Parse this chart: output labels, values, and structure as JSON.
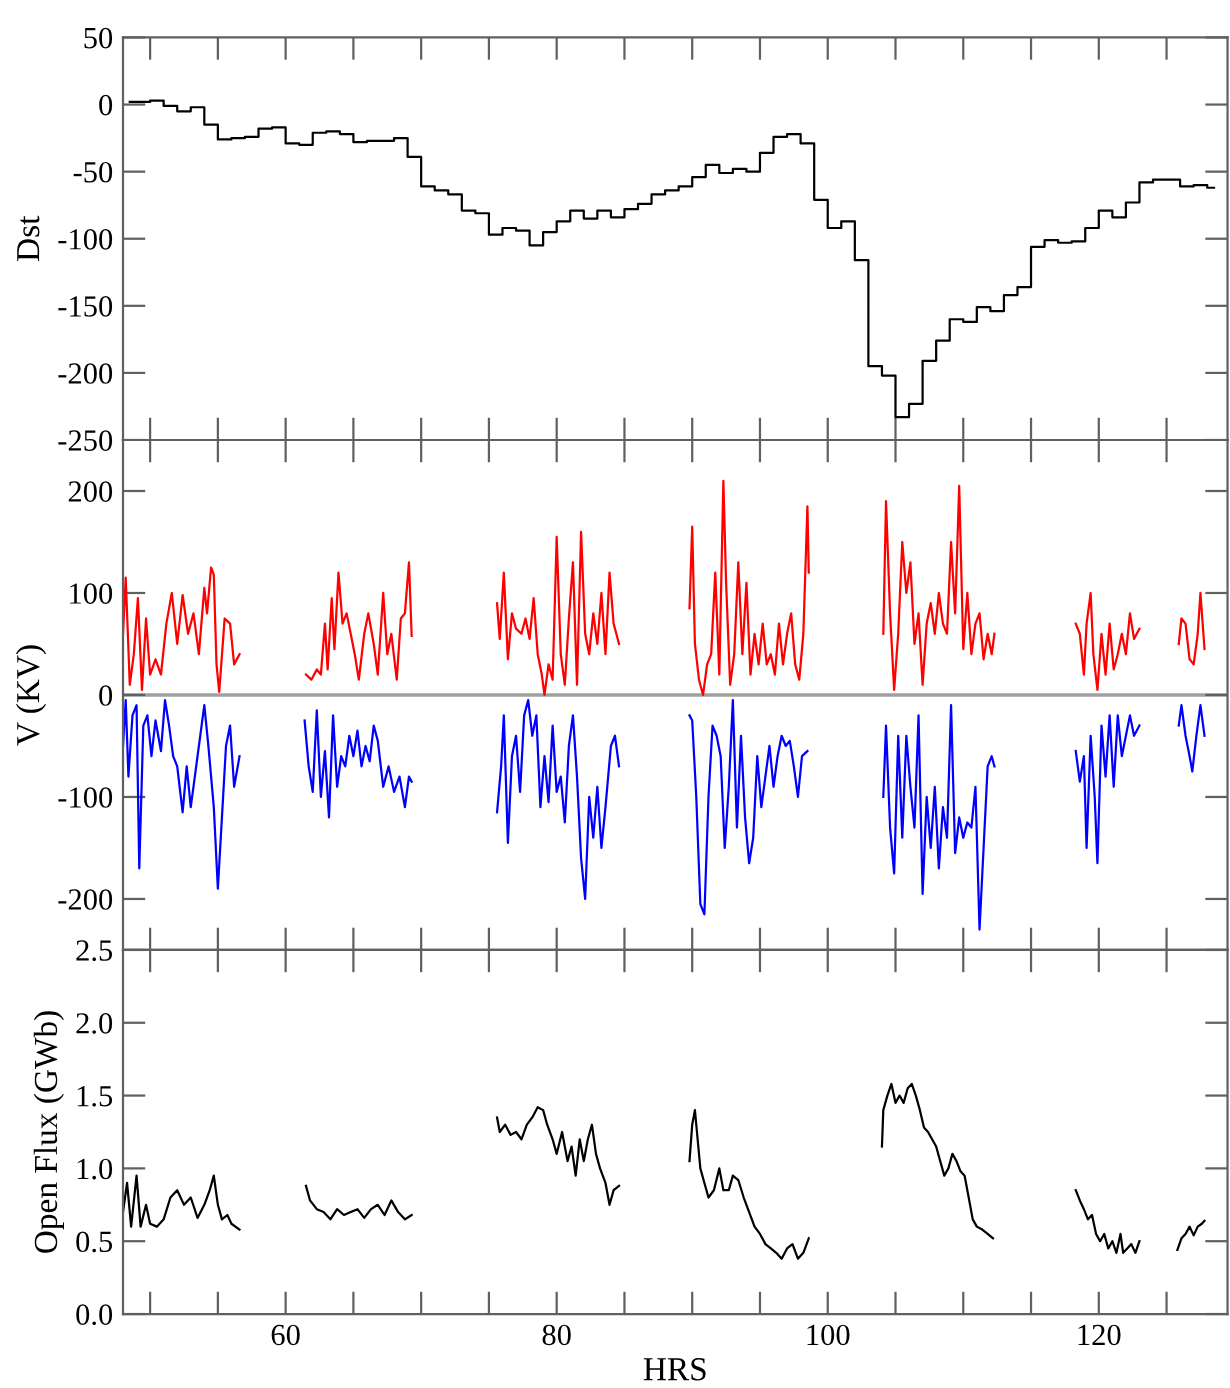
{
  "chart_data": [
    {
      "type": "step",
      "ylabel": "Dst",
      "xlim": [
        48,
        129.5
      ],
      "ylim": [
        -250,
        50
      ],
      "yticks": [
        -250,
        -200,
        -150,
        -100,
        -50,
        0,
        50
      ],
      "tick_labels": "y",
      "xticks": [
        {
          "value": 50,
          "label": null
        },
        {
          "value": 55,
          "label": null
        },
        {
          "value": 60,
          "label": null
        },
        {
          "value": 65,
          "label": null
        },
        {
          "value": 70,
          "label": null
        },
        {
          "value": 75,
          "label": null
        },
        {
          "value": 80,
          "label": null
        },
        {
          "value": 85,
          "label": null
        },
        {
          "value": 90,
          "label": null
        },
        {
          "value": 95,
          "label": null
        },
        {
          "value": 100,
          "label": null
        },
        {
          "value": 105,
          "label": null
        },
        {
          "value": 110,
          "label": null
        },
        {
          "value": 115,
          "label": null
        },
        {
          "value": 120,
          "label": null
        },
        {
          "value": 125,
          "label": null
        }
      ],
      "series": [
        {
          "color": "#000000",
          "x": [
            48.5,
            49.5,
            50.5,
            51.5,
            52.5,
            53.5,
            54.5,
            55.5,
            56.5,
            57.5,
            58.5,
            59.5,
            60.5,
            61.5,
            62.5,
            63.5,
            64.5,
            65.5,
            66.5,
            67.5,
            68.5,
            69.5,
            70.5,
            71.5,
            72.5,
            73.5,
            74.5,
            75.5,
            76.5,
            77.5,
            78.5,
            79.5,
            80.5,
            81.5,
            82.5,
            83.5,
            84.5,
            85.5,
            86.5,
            87.5,
            88.5,
            89.5,
            90.5,
            91.5,
            92.5,
            93.5,
            94.5,
            95.5,
            96.5,
            97.5,
            98.5,
            99.5,
            100.5,
            101.5,
            102.5,
            103.5,
            104.5,
            105.5,
            106.5,
            107.5,
            108.5,
            109.5,
            110.5,
            111.5,
            112.5,
            113.5,
            114.5,
            115.5,
            116.5,
            117.5,
            118.5,
            119.5,
            120.5,
            121.5,
            122.5,
            123.5,
            124.5,
            125.5,
            126.5,
            127.5,
            128.5
          ],
          "values": [
            2,
            2,
            3,
            -1,
            -5,
            -2,
            -15,
            -26,
            -25,
            -24,
            -18,
            -17,
            -29,
            -30,
            -21,
            -20,
            -22,
            -28,
            -27,
            -27,
            -25,
            -39,
            -61,
            -64,
            -67,
            -79,
            -81,
            -97,
            -92,
            -94,
            -105,
            -95,
            -87,
            -79,
            -85,
            -79,
            -84,
            -78,
            -74,
            -67,
            -64,
            -61,
            -54,
            -45,
            -51,
            -48,
            -50,
            -36,
            -24,
            -22,
            -29,
            -71,
            -92,
            -87,
            -116,
            -195,
            -202,
            -233,
            -223,
            -191,
            -176,
            -160,
            -162,
            -151,
            -154,
            -142,
            -136,
            -106,
            -101,
            -103,
            -102,
            -92,
            -79,
            -84,
            -73,
            -58,
            -56,
            -56,
            -61,
            -60,
            -62
          ]
        }
      ]
    },
    {
      "type": "line",
      "ylabel": "V (KV)",
      "xlim": [
        48,
        129.5
      ],
      "ylim": [
        -250,
        250
      ],
      "yticks": [
        -200,
        -100,
        0,
        100,
        200
      ],
      "tick_labels": "y",
      "xticks": [
        {
          "value": 50,
          "label": null
        },
        {
          "value": 55,
          "label": null
        },
        {
          "value": 60,
          "label": null
        },
        {
          "value": 65,
          "label": null
        },
        {
          "value": 70,
          "label": null
        },
        {
          "value": 75,
          "label": null
        },
        {
          "value": 80,
          "label": null
        },
        {
          "value": 85,
          "label": null
        },
        {
          "value": 90,
          "label": null
        },
        {
          "value": 95,
          "label": null
        },
        {
          "value": 100,
          "label": null
        },
        {
          "value": 105,
          "label": null
        },
        {
          "value": 110,
          "label": null
        },
        {
          "value": 115,
          "label": null
        },
        {
          "value": 120,
          "label": null
        },
        {
          "value": 125,
          "label": null
        }
      ],
      "ref_lines": [
        {
          "axis": "y",
          "value": 0,
          "color": "#a0a0a0"
        }
      ],
      "series": [
        {
          "color": "#ff0000",
          "x": [
            48.0,
            48.2,
            48.5,
            48.8,
            49.1,
            49.4,
            49.7,
            50.0,
            50.4,
            50.8,
            51.2,
            51.6,
            52.0,
            52.4,
            52.8,
            53.2,
            53.6,
            54.0,
            54.2,
            54.5,
            54.7,
            54.9,
            55.1,
            55.5,
            55.9,
            56.2,
            56.6,
            59,
            61.5,
            61.9,
            62.3,
            62.6,
            62.9,
            63.1,
            63.4,
            63.6,
            63.9,
            64.2,
            64.5,
            64.8,
            65.1,
            65.4,
            65.8,
            66.1,
            66.5,
            66.8,
            67.2,
            67.5,
            67.8,
            68.2,
            68.5,
            68.8,
            69.1,
            69.3,
            72,
            75.6,
            75.8,
            76.1,
            76.4,
            76.7,
            77.0,
            77.4,
            77.7,
            78.0,
            78.3,
            78.6,
            78.9,
            79.1,
            79.4,
            79.7,
            80.0,
            80.3,
            80.6,
            80.9,
            81.2,
            81.5,
            81.8,
            82.1,
            82.4,
            82.7,
            83.0,
            83.3,
            83.6,
            83.9,
            84.2,
            84.6,
            87,
            89.8,
            90.0,
            90.2,
            90.5,
            90.8,
            91.1,
            91.4,
            91.7,
            92.0,
            92.3,
            92.5,
            92.8,
            93.1,
            93.4,
            93.7,
            94.0,
            94.3,
            94.6,
            94.9,
            95.2,
            95.5,
            95.8,
            96.1,
            96.4,
            96.7,
            97.0,
            97.3,
            97.6,
            97.9,
            98.2,
            98.5,
            98.6,
            101,
            104.1,
            104.3,
            104.6,
            104.9,
            105.2,
            105.5,
            105.8,
            106.1,
            106.4,
            106.7,
            107.0,
            107.3,
            107.6,
            107.9,
            108.2,
            108.5,
            108.8,
            109.1,
            109.4,
            109.7,
            110.0,
            110.3,
            110.6,
            110.9,
            111.2,
            111.5,
            111.8,
            112.1,
            112.3,
            115,
            118.3,
            118.6,
            118.9,
            119.1,
            119.4,
            119.6,
            119.9,
            120.2,
            120.5,
            120.8,
            121.1,
            121.4,
            121.7,
            122.0,
            122.3,
            122.6,
            123.0,
            124.5,
            125.9,
            126.1,
            126.4,
            126.7,
            127.0,
            127.3,
            127.5,
            127.8
          ],
          "values": [
            60,
            115,
            10,
            40,
            95,
            5,
            75,
            20,
            35,
            20,
            70,
            100,
            50,
            98,
            60,
            80,
            40,
            105,
            80,
            125,
            118,
            30,
            3,
            75,
            70,
            30,
            40,
            null,
            20,
            15,
            25,
            20,
            70,
            25,
            95,
            45,
            120,
            70,
            80,
            60,
            40,
            15,
            60,
            80,
            50,
            20,
            100,
            40,
            60,
            15,
            75,
            80,
            130,
            58,
            null,
            90,
            55,
            120,
            35,
            80,
            65,
            60,
            75,
            55,
            95,
            40,
            20,
            0,
            30,
            15,
            155,
            40,
            10,
            75,
            130,
            10,
            160,
            60,
            40,
            80,
            50,
            100,
            40,
            120,
            70,
            50,
            null,
            85,
            165,
            50,
            15,
            0,
            30,
            40,
            120,
            20,
            210,
            110,
            10,
            40,
            130,
            40,
            110,
            20,
            60,
            30,
            70,
            30,
            40,
            20,
            70,
            30,
            60,
            80,
            30,
            15,
            60,
            185,
            120,
            null,
            60,
            190,
            80,
            5,
            60,
            150,
            100,
            130,
            50,
            80,
            10,
            70,
            90,
            60,
            100,
            70,
            60,
            150,
            80,
            205,
            45,
            100,
            40,
            70,
            80,
            35,
            60,
            40,
            60,
            null,
            70,
            60,
            20,
            70,
            100,
            40,
            5,
            60,
            20,
            70,
            25,
            40,
            60,
            40,
            80,
            55,
            65,
            null,
            50,
            75,
            70,
            35,
            30,
            60,
            100,
            45
          ]
        },
        {
          "color": "#0000ff",
          "x": [
            48.0,
            48.2,
            48.4,
            48.7,
            49.0,
            49.2,
            49.5,
            49.8,
            50.1,
            50.4,
            50.8,
            51.1,
            51.4,
            51.7,
            52.0,
            52.4,
            52.7,
            53.0,
            53.3,
            53.7,
            54.0,
            54.3,
            54.7,
            55.0,
            55.3,
            55.6,
            55.9,
            56.2,
            56.6,
            59,
            61.4,
            61.7,
            62.0,
            62.3,
            62.6,
            62.9,
            63.2,
            63.5,
            63.8,
            64.1,
            64.4,
            64.7,
            65.0,
            65.3,
            65.6,
            65.9,
            66.2,
            66.5,
            66.8,
            67.2,
            67.6,
            68.0,
            68.4,
            68.8,
            69.1,
            69.3,
            72,
            75.6,
            75.9,
            76.1,
            76.4,
            76.7,
            77.0,
            77.3,
            77.6,
            77.9,
            78.2,
            78.5,
            78.8,
            79.1,
            79.4,
            79.7,
            80.0,
            80.3,
            80.6,
            80.9,
            81.2,
            81.5,
            81.8,
            82.1,
            82.4,
            82.7,
            83.0,
            83.3,
            83.6,
            84.0,
            84.3,
            84.6,
            87,
            89.8,
            90.0,
            90.3,
            90.6,
            90.9,
            91.2,
            91.5,
            91.8,
            92.1,
            92.4,
            92.7,
            93.0,
            93.3,
            93.6,
            93.9,
            94.2,
            94.5,
            94.8,
            95.1,
            95.4,
            95.7,
            96.0,
            96.3,
            96.6,
            96.9,
            97.2,
            97.5,
            97.8,
            98.1,
            98.5,
            101,
            104.1,
            104.3,
            104.6,
            104.9,
            105.2,
            105.5,
            105.8,
            106.1,
            106.4,
            106.7,
            107.0,
            107.3,
            107.6,
            107.9,
            108.2,
            108.5,
            108.8,
            109.1,
            109.4,
            109.7,
            110.0,
            110.3,
            110.6,
            110.9,
            111.2,
            111.5,
            111.8,
            112.1,
            112.3,
            115,
            118.3,
            118.6,
            118.9,
            119.1,
            119.4,
            119.7,
            119.9,
            120.2,
            120.5,
            120.8,
            121.1,
            121.4,
            121.7,
            122.0,
            122.3,
            122.6,
            123.0,
            124.5,
            125.9,
            126.1,
            126.4,
            126.7,
            126.9,
            127.2,
            127.5,
            127.8
          ],
          "values": [
            -50,
            -5,
            -80,
            -20,
            -10,
            -170,
            -30,
            -20,
            -60,
            -25,
            -55,
            -5,
            -30,
            -60,
            -70,
            -115,
            -70,
            -110,
            -80,
            -40,
            -10,
            -50,
            -110,
            -190,
            -120,
            -50,
            -30,
            -90,
            -60,
            null,
            -25,
            -70,
            -95,
            -15,
            -100,
            -55,
            -120,
            -20,
            -90,
            -60,
            -70,
            -40,
            -60,
            -35,
            -70,
            -50,
            -65,
            -30,
            -45,
            -90,
            -70,
            -95,
            -80,
            -110,
            -80,
            -85,
            null,
            -115,
            -70,
            -20,
            -145,
            -60,
            -40,
            -95,
            -20,
            -5,
            -40,
            -20,
            -110,
            -60,
            -105,
            -30,
            -95,
            -80,
            -125,
            -50,
            -20,
            -80,
            -160,
            -200,
            -100,
            -140,
            -90,
            -150,
            -110,
            -50,
            -40,
            -70,
            null,
            -20,
            -25,
            -100,
            -205,
            -215,
            -100,
            -30,
            -40,
            -60,
            -150,
            -90,
            -5,
            -130,
            -40,
            -120,
            -165,
            -140,
            -60,
            -110,
            -80,
            -50,
            -90,
            -60,
            -40,
            -50,
            -45,
            -70,
            -100,
            -60,
            -55,
            null,
            -100,
            -30,
            -130,
            -175,
            -40,
            -140,
            -40,
            -90,
            -130,
            -20,
            -195,
            -100,
            -150,
            -90,
            -170,
            -110,
            -140,
            -10,
            -155,
            -120,
            -140,
            -125,
            -130,
            -90,
            -230,
            -150,
            -70,
            -60,
            -70,
            null,
            -55,
            -85,
            -60,
            -150,
            -40,
            -100,
            -165,
            -30,
            -80,
            -20,
            -90,
            -20,
            -60,
            -40,
            -20,
            -40,
            -30,
            null,
            -30,
            -10,
            -40,
            -60,
            -75,
            -40,
            -10,
            -40
          ]
        }
      ]
    },
    {
      "type": "line",
      "xlabel": "HRS",
      "ylabel": "Open Flux (GWb)",
      "xlim": [
        48,
        129.5
      ],
      "ylim": [
        0,
        2.5
      ],
      "yticks": [
        {
          "value": 0,
          "label": "0.0"
        },
        {
          "value": 0.5,
          "label": "0.5"
        },
        {
          "value": 1,
          "label": "1.0"
        },
        {
          "value": 1.5,
          "label": "1.5"
        },
        {
          "value": 2,
          "label": "2.0"
        },
        {
          "value": 2.5,
          "label": "2.5"
        }
      ],
      "xticks": [
        {
          "value": 50,
          "label": null
        },
        {
          "value": 55,
          "label": null
        },
        60,
        {
          "value": 65,
          "label": null
        },
        {
          "value": 70,
          "label": null
        },
        {
          "value": 75,
          "label": null
        },
        80,
        {
          "value": 85,
          "label": null
        },
        {
          "value": 90,
          "label": null
        },
        {
          "value": 95,
          "label": null
        },
        100,
        {
          "value": 105,
          "label": null
        },
        {
          "value": 110,
          "label": null
        },
        {
          "value": 115,
          "label": null
        },
        120,
        {
          "value": 125,
          "label": null
        }
      ],
      "series": [
        {
          "color": "#000000",
          "x": [
            48,
            48.3,
            48.6,
            49.0,
            49.3,
            49.7,
            50.0,
            50.5,
            51.0,
            51.5,
            52.0,
            52.5,
            53.0,
            53.5,
            54.0,
            54.4,
            54.7,
            55.0,
            55.3,
            55.7,
            56.0,
            56.6,
            59,
            61.5,
            61.8,
            62.3,
            62.8,
            63.3,
            63.8,
            64.3,
            64.8,
            65.3,
            65.8,
            66.3,
            66.8,
            67.3,
            67.8,
            68.3,
            68.8,
            69.3,
            72,
            75.6,
            75.8,
            76.2,
            76.6,
            77.0,
            77.4,
            77.8,
            78.2,
            78.6,
            79.0,
            79.3,
            79.7,
            80.0,
            80.4,
            80.8,
            81.1,
            81.4,
            81.7,
            82.0,
            82.3,
            82.6,
            82.9,
            83.2,
            83.6,
            83.9,
            84.2,
            84.6,
            87,
            89.8,
            90.0,
            90.2,
            90.4,
            90.6,
            90.9,
            91.2,
            91.6,
            92.0,
            92.3,
            92.7,
            93.0,
            93.4,
            93.8,
            94.2,
            94.6,
            95.0,
            95.4,
            95.8,
            96.2,
            96.6,
            97.0,
            97.4,
            97.8,
            98.2,
            98.6,
            101,
            104.0,
            104.1,
            104.4,
            104.7,
            105.0,
            105.3,
            105.6,
            105.9,
            106.2,
            106.5,
            106.8,
            107.1,
            107.4,
            107.7,
            108.0,
            108.3,
            108.6,
            108.9,
            109.2,
            109.5,
            109.8,
            110.1,
            110.4,
            110.7,
            111.0,
            111.4,
            111.8,
            112.2,
            115,
            118.3,
            118.6,
            118.9,
            119.2,
            119.5,
            119.8,
            120.1,
            120.4,
            120.7,
            121.0,
            121.3,
            121.6,
            121.8,
            122.1,
            122.4,
            122.7,
            123.0,
            124.5,
            125.8,
            126.1,
            126.4,
            126.7,
            127.0,
            127.3,
            127.6,
            127.8
          ],
          "values": [
            0.7,
            0.9,
            0.6,
            0.95,
            0.6,
            0.75,
            0.62,
            0.6,
            0.65,
            0.8,
            0.85,
            0.75,
            0.8,
            0.66,
            0.75,
            0.85,
            0.95,
            0.75,
            0.65,
            0.68,
            0.62,
            0.58,
            null,
            0.88,
            0.78,
            0.72,
            0.7,
            0.65,
            0.72,
            0.68,
            0.7,
            0.72,
            0.66,
            0.72,
            0.75,
            0.68,
            0.78,
            0.7,
            0.65,
            0.68,
            null,
            1.35,
            1.25,
            1.3,
            1.23,
            1.25,
            1.2,
            1.3,
            1.35,
            1.42,
            1.4,
            1.3,
            1.2,
            1.1,
            1.25,
            1.05,
            1.15,
            0.95,
            1.2,
            1.05,
            1.2,
            1.3,
            1.1,
            1.0,
            0.9,
            0.75,
            0.85,
            0.88,
            null,
            1.05,
            1.3,
            1.4,
            1.2,
            1.0,
            0.9,
            0.8,
            0.85,
            1.0,
            0.85,
            0.85,
            0.95,
            0.92,
            0.8,
            0.7,
            0.6,
            0.55,
            0.48,
            0.45,
            0.42,
            0.38,
            0.45,
            0.48,
            0.38,
            0.42,
            0.52,
            null,
            1.15,
            1.4,
            1.5,
            1.58,
            1.45,
            1.5,
            1.45,
            1.55,
            1.58,
            1.5,
            1.4,
            1.28,
            1.25,
            1.2,
            1.15,
            1.05,
            0.95,
            1.0,
            1.1,
            1.05,
            0.98,
            0.95,
            0.8,
            0.65,
            0.6,
            0.58,
            0.55,
            0.52,
            null,
            0.85,
            0.78,
            0.72,
            0.65,
            0.68,
            0.55,
            0.5,
            0.55,
            0.45,
            0.5,
            0.42,
            0.55,
            0.42,
            0.45,
            0.48,
            0.42,
            0.5,
            null,
            0.44,
            0.52,
            0.55,
            0.6,
            0.54,
            0.6,
            0.62,
            0.64
          ]
        }
      ]
    }
  ]
}
